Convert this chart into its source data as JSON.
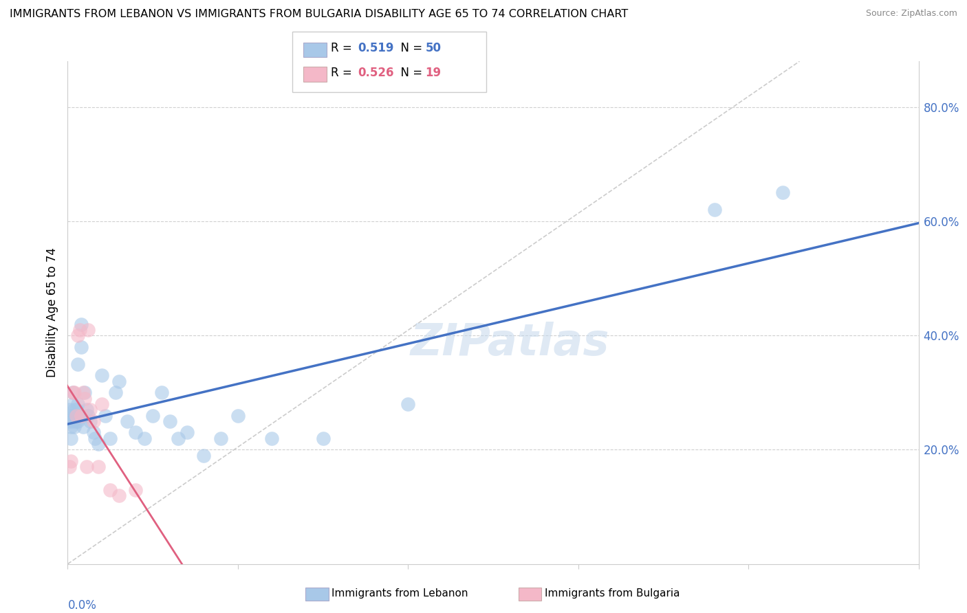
{
  "title": "IMMIGRANTS FROM LEBANON VS IMMIGRANTS FROM BULGARIA DISABILITY AGE 65 TO 74 CORRELATION CHART",
  "source": "Source: ZipAtlas.com",
  "ylabel": "Disability Age 65 to 74",
  "ylabel_right_ticks": [
    "20.0%",
    "40.0%",
    "60.0%",
    "80.0%"
  ],
  "ylabel_right_vals": [
    0.2,
    0.4,
    0.6,
    0.8
  ],
  "legend_lebanon_R": 0.519,
  "legend_lebanon_N": 50,
  "legend_bulgaria_R": 0.526,
  "legend_bulgaria_N": 19,
  "lebanon_color": "#a8c8e8",
  "bulgaria_color": "#f4b8c8",
  "lebanon_line_color": "#4472c4",
  "bulgaria_line_color": "#e06080",
  "xlim": [
    0.0,
    0.5
  ],
  "ylim": [
    0.0,
    0.88
  ],
  "lebanon_x": [
    0.001,
    0.001,
    0.002,
    0.002,
    0.002,
    0.003,
    0.003,
    0.003,
    0.004,
    0.004,
    0.004,
    0.005,
    0.005,
    0.005,
    0.006,
    0.006,
    0.006,
    0.007,
    0.007,
    0.008,
    0.008,
    0.009,
    0.01,
    0.011,
    0.012,
    0.013,
    0.015,
    0.016,
    0.018,
    0.02,
    0.022,
    0.025,
    0.028,
    0.03,
    0.035,
    0.04,
    0.045,
    0.05,
    0.055,
    0.06,
    0.065,
    0.07,
    0.08,
    0.09,
    0.1,
    0.12,
    0.15,
    0.2,
    0.38,
    0.42
  ],
  "lebanon_y": [
    0.25,
    0.27,
    0.26,
    0.24,
    0.22,
    0.28,
    0.3,
    0.25,
    0.26,
    0.24,
    0.27,
    0.25,
    0.26,
    0.27,
    0.28,
    0.35,
    0.25,
    0.26,
    0.26,
    0.38,
    0.42,
    0.24,
    0.3,
    0.27,
    0.26,
    0.25,
    0.23,
    0.22,
    0.21,
    0.33,
    0.26,
    0.22,
    0.3,
    0.32,
    0.25,
    0.23,
    0.22,
    0.26,
    0.3,
    0.25,
    0.22,
    0.23,
    0.19,
    0.22,
    0.26,
    0.22,
    0.22,
    0.28,
    0.62,
    0.65
  ],
  "bulgaria_x": [
    0.001,
    0.002,
    0.003,
    0.004,
    0.005,
    0.006,
    0.007,
    0.008,
    0.009,
    0.01,
    0.011,
    0.012,
    0.013,
    0.015,
    0.018,
    0.02,
    0.025,
    0.03,
    0.04
  ],
  "bulgaria_y": [
    0.17,
    0.18,
    0.3,
    0.3,
    0.26,
    0.4,
    0.41,
    0.26,
    0.3,
    0.29,
    0.17,
    0.41,
    0.27,
    0.25,
    0.17,
    0.28,
    0.13,
    0.12,
    0.13
  ]
}
